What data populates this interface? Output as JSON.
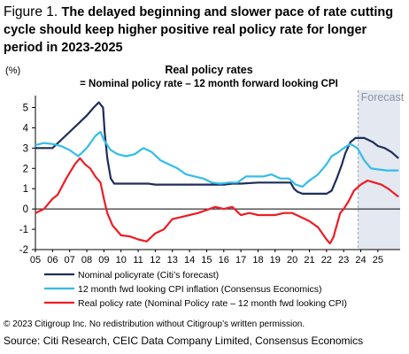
{
  "figure": {
    "number": "Figure 1.",
    "title": "The delayed beginning and slower pace of rate cutting cycle should keep higher positive real policy rate for longer period in 2023-2025"
  },
  "footer": {
    "copyright": "© 2023 Citigroup Inc. No redistribution without Citigroup’s written permission.",
    "source": "Source: Citi Research, CEIC Data Company Limited, Consensus Economics"
  },
  "chart_data": {
    "type": "line",
    "title": "Real policy rates",
    "subtitle": "= Nominal policy rate – 12 month forward looking CPI",
    "ylabel": "(%)",
    "xlabel": "",
    "ylim": [
      -2,
      5.5
    ],
    "yticks": [
      -2,
      -1,
      0,
      1,
      2,
      3,
      4,
      5
    ],
    "xlim": [
      2005,
      2026.3
    ],
    "xtick_labels": [
      "05",
      "06",
      "07",
      "08",
      "09",
      "10",
      "11",
      "12",
      "13",
      "14",
      "15",
      "16",
      "17",
      "18",
      "19",
      "20",
      "21",
      "22",
      "23",
      "24",
      "25"
    ],
    "zero_line": true,
    "forecast": {
      "label": "Forecast",
      "start": 2023.85
    },
    "legend_position": "bottom",
    "series": [
      {
        "name": "Nominal policyrate (Citi’s forecast)",
        "color": "#1f2d5a",
        "points": [
          [
            2005.0,
            3.0
          ],
          [
            2005.5,
            3.0
          ],
          [
            2006.0,
            3.0
          ],
          [
            2006.5,
            3.4
          ],
          [
            2007.0,
            3.8
          ],
          [
            2007.5,
            4.2
          ],
          [
            2008.0,
            4.6
          ],
          [
            2008.4,
            5.0
          ],
          [
            2008.7,
            5.25
          ],
          [
            2008.95,
            5.0
          ],
          [
            2009.05,
            3.75
          ],
          [
            2009.2,
            2.5
          ],
          [
            2009.4,
            1.5
          ],
          [
            2009.6,
            1.25
          ],
          [
            2010.0,
            1.25
          ],
          [
            2011.0,
            1.25
          ],
          [
            2011.6,
            1.25
          ],
          [
            2012.0,
            1.2
          ],
          [
            2012.5,
            1.2
          ],
          [
            2013.0,
            1.2
          ],
          [
            2014.0,
            1.2
          ],
          [
            2015.0,
            1.2
          ],
          [
            2016.0,
            1.2
          ],
          [
            2016.5,
            1.25
          ],
          [
            2017.0,
            1.25
          ],
          [
            2018.0,
            1.3
          ],
          [
            2019.0,
            1.3
          ],
          [
            2019.9,
            1.3
          ],
          [
            2020.1,
            1.0
          ],
          [
            2020.3,
            0.85
          ],
          [
            2020.6,
            0.75
          ],
          [
            2021.0,
            0.75
          ],
          [
            2021.5,
            0.75
          ],
          [
            2022.0,
            0.75
          ],
          [
            2022.3,
            0.9
          ],
          [
            2022.6,
            1.5
          ],
          [
            2022.9,
            2.2
          ],
          [
            2023.1,
            2.75
          ],
          [
            2023.4,
            3.3
          ],
          [
            2023.7,
            3.5
          ],
          [
            2024.2,
            3.5
          ],
          [
            2024.7,
            3.3
          ],
          [
            2025.0,
            3.1
          ],
          [
            2025.4,
            3.0
          ],
          [
            2025.8,
            2.8
          ],
          [
            2026.2,
            2.5
          ]
        ]
      },
      {
        "name": "12 month fwd looking CPI inflation (Consensus Economics)",
        "color": "#33bde8",
        "points": [
          [
            2005.0,
            3.15
          ],
          [
            2005.5,
            3.25
          ],
          [
            2006.0,
            3.2
          ],
          [
            2006.5,
            3.1
          ],
          [
            2007.0,
            2.9
          ],
          [
            2007.5,
            2.6
          ],
          [
            2008.0,
            3.0
          ],
          [
            2008.5,
            3.6
          ],
          [
            2008.8,
            3.8
          ],
          [
            2009.0,
            3.4
          ],
          [
            2009.4,
            2.9
          ],
          [
            2009.8,
            2.7
          ],
          [
            2010.3,
            2.6
          ],
          [
            2010.8,
            2.7
          ],
          [
            2011.3,
            3.0
          ],
          [
            2011.8,
            2.8
          ],
          [
            2012.3,
            2.4
          ],
          [
            2012.8,
            2.2
          ],
          [
            2013.3,
            2.0
          ],
          [
            2013.8,
            1.7
          ],
          [
            2014.3,
            1.6
          ],
          [
            2014.8,
            1.5
          ],
          [
            2015.3,
            1.3
          ],
          [
            2015.8,
            1.25
          ],
          [
            2016.3,
            1.3
          ],
          [
            2016.8,
            1.3
          ],
          [
            2017.3,
            1.6
          ],
          [
            2017.8,
            1.6
          ],
          [
            2018.3,
            1.6
          ],
          [
            2018.8,
            1.7
          ],
          [
            2019.3,
            1.5
          ],
          [
            2019.8,
            1.5
          ],
          [
            2020.2,
            1.2
          ],
          [
            2020.6,
            1.1
          ],
          [
            2021.0,
            1.4
          ],
          [
            2021.5,
            1.7
          ],
          [
            2022.0,
            2.2
          ],
          [
            2022.3,
            2.6
          ],
          [
            2022.7,
            2.8
          ],
          [
            2023.0,
            3.0
          ],
          [
            2023.4,
            3.2
          ],
          [
            2023.8,
            3.0
          ],
          [
            2024.2,
            2.4
          ],
          [
            2024.6,
            2.0
          ],
          [
            2025.0,
            1.95
          ],
          [
            2025.5,
            1.9
          ],
          [
            2026.2,
            1.9
          ]
        ]
      },
      {
        "name": "Real policy rate (Nominal Policy rate – 12 month fwd looking CPI)",
        "color": "#ee1c25",
        "points": [
          [
            2005.0,
            -0.2
          ],
          [
            2005.5,
            0.0
          ],
          [
            2006.0,
            0.5
          ],
          [
            2006.3,
            0.7
          ],
          [
            2006.8,
            1.5
          ],
          [
            2007.3,
            2.2
          ],
          [
            2007.6,
            2.5
          ],
          [
            2007.9,
            2.2
          ],
          [
            2008.2,
            2.0
          ],
          [
            2008.5,
            1.6
          ],
          [
            2008.8,
            1.3
          ],
          [
            2009.0,
            0.5
          ],
          [
            2009.2,
            -0.2
          ],
          [
            2009.5,
            -0.8
          ],
          [
            2010.0,
            -1.3
          ],
          [
            2010.5,
            -1.35
          ],
          [
            2011.0,
            -1.5
          ],
          [
            2011.5,
            -1.6
          ],
          [
            2012.0,
            -1.2
          ],
          [
            2012.5,
            -1.0
          ],
          [
            2013.0,
            -0.5
          ],
          [
            2013.5,
            -0.4
          ],
          [
            2014.0,
            -0.3
          ],
          [
            2014.5,
            -0.2
          ],
          [
            2015.0,
            -0.05
          ],
          [
            2015.5,
            0.1
          ],
          [
            2016.0,
            0.0
          ],
          [
            2016.5,
            0.1
          ],
          [
            2017.0,
            -0.3
          ],
          [
            2017.5,
            -0.2
          ],
          [
            2018.0,
            -0.3
          ],
          [
            2018.5,
            -0.3
          ],
          [
            2019.0,
            -0.3
          ],
          [
            2019.5,
            -0.2
          ],
          [
            2020.0,
            -0.2
          ],
          [
            2020.5,
            -0.4
          ],
          [
            2021.0,
            -0.6
          ],
          [
            2021.5,
            -0.9
          ],
          [
            2022.0,
            -1.5
          ],
          [
            2022.2,
            -1.7
          ],
          [
            2022.4,
            -1.4
          ],
          [
            2022.6,
            -0.8
          ],
          [
            2022.8,
            -0.2
          ],
          [
            2023.0,
            0.0
          ],
          [
            2023.3,
            0.4
          ],
          [
            2023.6,
            0.9
          ],
          [
            2024.0,
            1.2
          ],
          [
            2024.4,
            1.4
          ],
          [
            2024.8,
            1.3
          ],
          [
            2025.2,
            1.2
          ],
          [
            2025.6,
            1.0
          ],
          [
            2026.2,
            0.6
          ]
        ]
      }
    ]
  }
}
